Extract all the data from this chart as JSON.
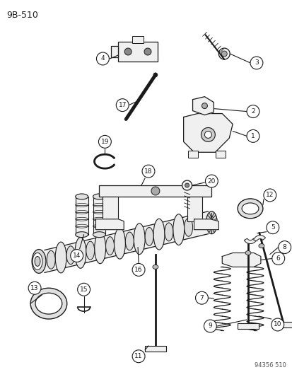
{
  "title": "9B-510",
  "footer": "94356 510",
  "bg_color": "#ffffff",
  "line_color": "#1a1a1a",
  "fig_width": 4.14,
  "fig_height": 5.33,
  "dpi": 100
}
